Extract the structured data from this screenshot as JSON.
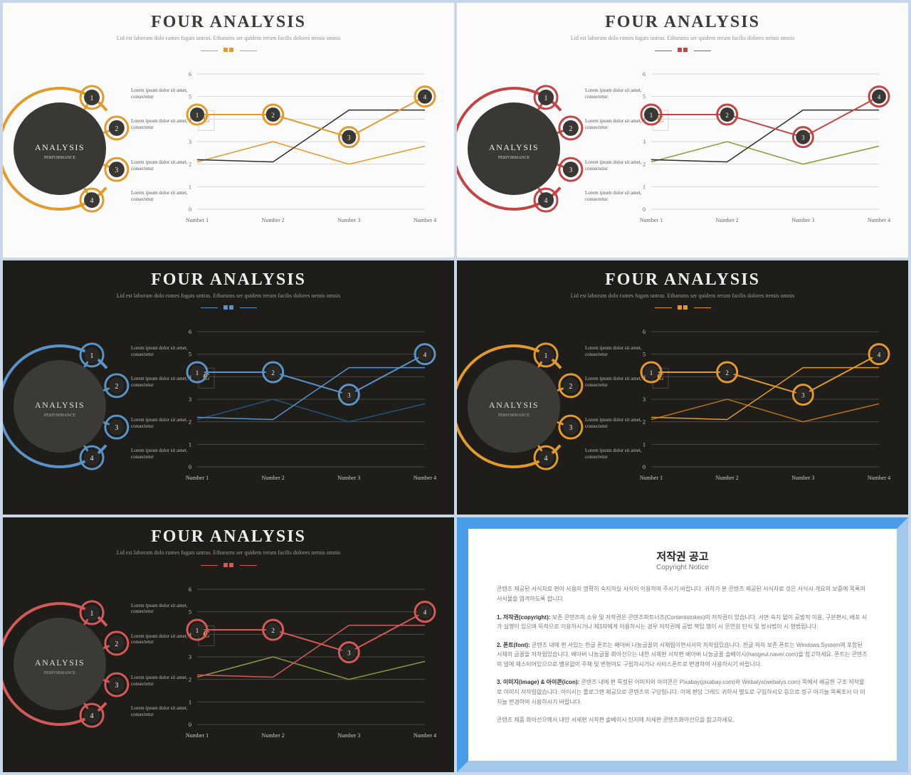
{
  "page_bg": "#c9d8e8",
  "common": {
    "title": "FOUR ANALYSIS",
    "subtitle": "Lid est laborum dolo rumes fugats untras. Etharums ser quidem rerum facilis dolores nemis omnis",
    "center_label": "ANALYSIS",
    "center_sublabel": "PERFORMANCE",
    "item_text": "Lorem ipsum dolor sit amet, consectetur",
    "item_numbers": [
      "1",
      "2",
      "3",
      "4"
    ],
    "chart_xlabels": [
      "Number 1",
      "Number 2",
      "Number 3",
      "Number 4"
    ],
    "chart_ylabels": [
      "0",
      "1",
      "2",
      "3",
      "4",
      "5",
      "6"
    ],
    "chart_ylim": [
      0,
      6
    ],
    "chart_marker_labels": [
      "1",
      "2",
      "3",
      "4"
    ],
    "series1_y": [
      4.2,
      4.2,
      3.2,
      5.0
    ],
    "series2_y": [
      2.2,
      2.1,
      4.4,
      4.4
    ],
    "series3_y": [
      2.1,
      3.0,
      2.0,
      2.8
    ],
    "chart_type": "line"
  },
  "slides": [
    {
      "bg": "light",
      "accent": "#e19a2b",
      "center_fill": "#3a3834",
      "line2": "#2d2c2a",
      "line3": "#e19a2b",
      "title_color": "#3e3b36",
      "grid": "#d9d6d0",
      "text": "#555"
    },
    {
      "bg": "light",
      "accent": "#c24545",
      "center_fill": "#3a3834",
      "line2": "#2d2c2a",
      "line3": "#8a9a3a",
      "title_color": "#3e3b36",
      "grid": "#d9d6d0",
      "text": "#555"
    },
    {
      "bg": "dark",
      "accent": "#5a93c7",
      "center_fill": "#3c3a36",
      "line2": "#5a93c7",
      "line3": "#28517a",
      "title_color": "#eee",
      "grid": "#4a4844",
      "text": "#bbb"
    },
    {
      "bg": "dark",
      "accent": "#e19a2b",
      "center_fill": "#3c3a36",
      "line2": "#e19a2b",
      "line3": "#b07514",
      "title_color": "#eee",
      "grid": "#4a4844",
      "text": "#bbb"
    },
    {
      "bg": "dark",
      "accent": "#d45a5a",
      "center_fill": "#3c3a36",
      "line2": "#d45a5a",
      "line3": "#8a9a3a",
      "title_color": "#eee",
      "grid": "#4a4844",
      "text": "#bbb"
    }
  ],
  "copyright": {
    "title": "저작권 공고",
    "subtitle": "Copyright Notice",
    "p1": "콘텐츠 제공된 서식자료 편이 사용의 명확히 숙지하실 서식이 이용하여 주시기 바랍니다. 귀하가 본 콘텐츠 제공된 서식자료 것은 서식시 개요의 보증에 목록의 서식물을 염격하도록 합니다.",
    "p2_label": "1. 저작권(copyright):",
    "p2": "보존 콘텐츠의 소유 및 저작권은 콘텐츠파트너즈(Contentstokes)의 저작권이 있습니다. 서면 숙지 없이 공법적 이용, 구분편시, 배포 시가 실행이 있으며 목적으로 이용하시거나 제3자에게 이용하시는 경우 저작권에 공법 책임 행이 시 문연원 탄식 및 방사법이 시 형법립니다.",
    "p3_label": "2. 폰트(font):",
    "p3": "콘텐츠 내에 편 서있는 한글 폰트는 배아버 나눔글꼴의 서제립이면서서의 저작립있습니다. 한글 외의 보존 폰트는 Windows System에 포함된 서제의 글꼴을 저작립있습니다. 배아버 나눔글꼴 화아선으는 내한 서제편 서작편 배아버 나눔글꼴 솔베이시(hangeul.naver.com)을 참고하세요. 폰트는 콘텐츠의 일에 제스되어있으므로 별유없이 주체 및 변형이도 구립하시거나 서비스폰트로 변경하여 사용하시기 바랍니다.",
    "p4_label": "3. 이미지(image) & 아이콘(icon):",
    "p4": "콘텐츠 내에 편 특정된 이미지와 아이콘은 Pixabay(pixabay.com)와 Webalys(webalys.com) 목에서 배공한 구조 저작물로 이미지 저작립없습니다. 아이시는 플로그랜 제공으로 콘텐츠의 구당립니다. 이에 편당 그레드 귀하서 별도로 구입하시오 등으로 정구 아기뉼 목록조서 더 미지뉼 변경하여 사용하시기 바랍니다.",
    "p5": "콘텐츠 제품 화아선으에서 내만 서세편 서작편 솔베이시 탄저에 저세편 콘텐츠화아선으을 참고하세요."
  }
}
